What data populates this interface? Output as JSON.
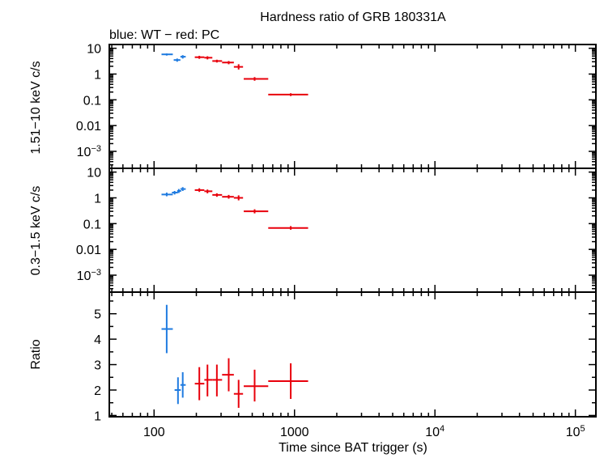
{
  "chart_data": {
    "type": "scatter",
    "title": "Hardness ratio of GRB 180331A",
    "subtitle": "blue: WT − red: PC",
    "xlabel": "Time since BAT trigger (s)",
    "xscale": "log",
    "xlim": [
      48,
      140000
    ],
    "x_ticks": [
      {
        "value": 100,
        "label": "100"
      },
      {
        "value": 1000,
        "label": "1000"
      },
      {
        "value": 10000,
        "label": "10",
        "exp": "4"
      },
      {
        "value": 100000,
        "label": "10",
        "exp": "5"
      }
    ],
    "colors": {
      "WT": "#1f7be0",
      "PC": "#e8000b"
    },
    "panels": [
      {
        "id": "hard",
        "ylabel": "1.51−10 keV c/s",
        "yscale": "log",
        "ylim": [
          0.00022,
          14
        ],
        "y_ticks": [
          {
            "value": 10,
            "label": "10"
          },
          {
            "value": 1,
            "label": "1"
          },
          {
            "value": 0.1,
            "label": "0.1"
          },
          {
            "value": 0.01,
            "label": "0.01"
          },
          {
            "value": 0.001,
            "label": "10",
            "exp": "−3"
          }
        ],
        "series": [
          {
            "mode": "WT",
            "points": [
              {
                "x": 123,
                "xlo": 113,
                "xhi": 136,
                "y": 5.8,
                "ylo": 5.2,
                "yhi": 6.3
              },
              {
                "x": 146,
                "xlo": 138,
                "xhi": 154,
                "y": 3.5,
                "ylo": 3.0,
                "yhi": 4.0
              },
              {
                "x": 160,
                "xlo": 154,
                "xhi": 168,
                "y": 4.7,
                "ylo": 4.0,
                "yhi": 5.4
              }
            ]
          },
          {
            "mode": "PC",
            "points": [
              {
                "x": 210,
                "xlo": 195,
                "xhi": 228,
                "y": 4.5,
                "ylo": 3.9,
                "yhi": 5.1
              },
              {
                "x": 240,
                "xlo": 228,
                "xhi": 260,
                "y": 4.3,
                "ylo": 3.7,
                "yhi": 4.9
              },
              {
                "x": 280,
                "xlo": 260,
                "xhi": 305,
                "y": 3.2,
                "ylo": 2.8,
                "yhi": 3.6
              },
              {
                "x": 340,
                "xlo": 305,
                "xhi": 370,
                "y": 2.8,
                "ylo": 2.4,
                "yhi": 3.2
              },
              {
                "x": 400,
                "xlo": 370,
                "xhi": 430,
                "y": 1.9,
                "ylo": 1.5,
                "yhi": 2.4
              },
              {
                "x": 520,
                "xlo": 435,
                "xhi": 650,
                "y": 0.65,
                "ylo": 0.55,
                "yhi": 0.76
              },
              {
                "x": 940,
                "xlo": 650,
                "xhi": 1250,
                "y": 0.16,
                "ylo": 0.14,
                "yhi": 0.18
              }
            ]
          }
        ]
      },
      {
        "id": "soft",
        "ylabel": "0.3−1.5 keV c/s",
        "yscale": "log",
        "ylim": [
          0.00022,
          14
        ],
        "y_ticks": [
          {
            "value": 10,
            "label": "10"
          },
          {
            "value": 1,
            "label": "1"
          },
          {
            "value": 0.1,
            "label": "0.1"
          },
          {
            "value": 0.01,
            "label": "0.01"
          },
          {
            "value": 0.001,
            "label": "10",
            "exp": "−3"
          }
        ],
        "series": [
          {
            "mode": "WT",
            "points": [
              {
                "x": 123,
                "xlo": 113,
                "xhi": 136,
                "y": 1.35,
                "ylo": 1.15,
                "yhi": 1.6
              },
              {
                "x": 140,
                "xlo": 134,
                "xhi": 148,
                "y": 1.6,
                "ylo": 1.35,
                "yhi": 1.85
              },
              {
                "x": 150,
                "xlo": 146,
                "xhi": 156,
                "y": 1.85,
                "ylo": 1.55,
                "yhi": 2.2
              },
              {
                "x": 160,
                "xlo": 154,
                "xhi": 168,
                "y": 2.2,
                "ylo": 1.85,
                "yhi": 2.6
              }
            ]
          },
          {
            "mode": "PC",
            "points": [
              {
                "x": 210,
                "xlo": 195,
                "xhi": 228,
                "y": 2.0,
                "ylo": 1.7,
                "yhi": 2.35
              },
              {
                "x": 240,
                "xlo": 228,
                "xhi": 260,
                "y": 1.8,
                "ylo": 1.5,
                "yhi": 2.1
              },
              {
                "x": 280,
                "xlo": 260,
                "xhi": 305,
                "y": 1.3,
                "ylo": 1.1,
                "yhi": 1.5
              },
              {
                "x": 340,
                "xlo": 305,
                "xhi": 370,
                "y": 1.1,
                "ylo": 0.93,
                "yhi": 1.3
              },
              {
                "x": 400,
                "xlo": 370,
                "xhi": 430,
                "y": 1.0,
                "ylo": 0.8,
                "yhi": 1.25
              },
              {
                "x": 520,
                "xlo": 435,
                "xhi": 650,
                "y": 0.3,
                "ylo": 0.25,
                "yhi": 0.36
              },
              {
                "x": 940,
                "xlo": 650,
                "xhi": 1250,
                "y": 0.068,
                "ylo": 0.058,
                "yhi": 0.08
              }
            ]
          }
        ]
      },
      {
        "id": "ratio",
        "ylabel": "Ratio",
        "yscale": "linear",
        "ylim": [
          0.95,
          5.85
        ],
        "y_ticks": [
          {
            "value": 1,
            "label": "1"
          },
          {
            "value": 2,
            "label": "2"
          },
          {
            "value": 3,
            "label": "3"
          },
          {
            "value": 4,
            "label": "4"
          },
          {
            "value": 5,
            "label": "5"
          }
        ],
        "series": [
          {
            "mode": "WT",
            "points": [
              {
                "x": 123,
                "xlo": 113,
                "xhi": 136,
                "y": 4.4,
                "ylo": 3.45,
                "yhi": 5.35
              },
              {
                "x": 148,
                "xlo": 140,
                "xhi": 155,
                "y": 2.0,
                "ylo": 1.45,
                "yhi": 2.5
              },
              {
                "x": 160,
                "xlo": 154,
                "xhi": 168,
                "y": 2.2,
                "ylo": 1.7,
                "yhi": 2.7
              }
            ]
          },
          {
            "mode": "PC",
            "points": [
              {
                "x": 210,
                "xlo": 195,
                "xhi": 228,
                "y": 2.25,
                "ylo": 1.6,
                "yhi": 2.9
              },
              {
                "x": 240,
                "xlo": 228,
                "xhi": 260,
                "y": 2.4,
                "ylo": 1.75,
                "yhi": 3.0
              },
              {
                "x": 280,
                "xlo": 260,
                "xhi": 305,
                "y": 2.4,
                "ylo": 1.75,
                "yhi": 3.0
              },
              {
                "x": 340,
                "xlo": 305,
                "xhi": 370,
                "y": 2.6,
                "ylo": 1.95,
                "yhi": 3.25
              },
              {
                "x": 400,
                "xlo": 370,
                "xhi": 430,
                "y": 1.85,
                "ylo": 1.3,
                "yhi": 2.4
              },
              {
                "x": 520,
                "xlo": 435,
                "xhi": 650,
                "y": 2.15,
                "ylo": 1.55,
                "yhi": 2.8
              },
              {
                "x": 940,
                "xlo": 650,
                "xhi": 1250,
                "y": 2.35,
                "ylo": 1.65,
                "yhi": 3.05
              }
            ]
          }
        ]
      }
    ]
  }
}
